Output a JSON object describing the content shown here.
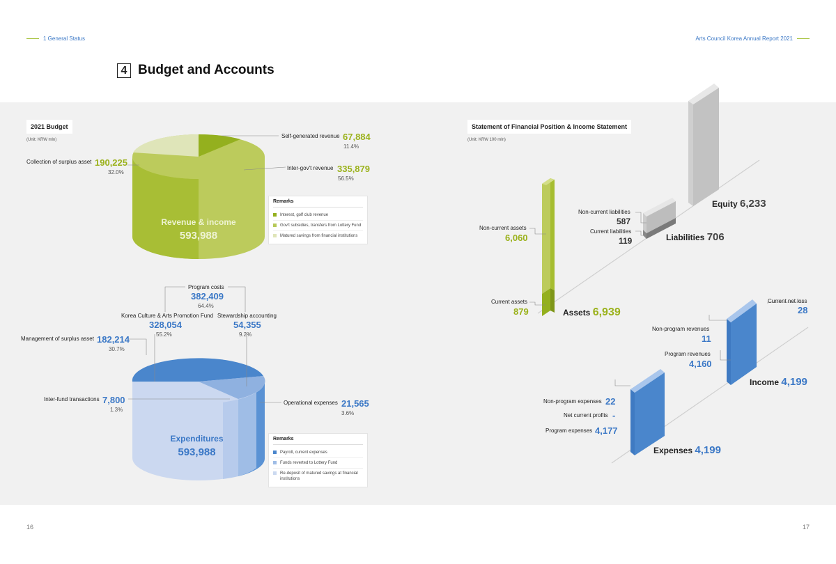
{
  "header": {
    "left": "1  General Status",
    "right": "Arts Council Korea Annual Report 2021"
  },
  "title": {
    "number": "4",
    "text": "Budget and Accounts"
  },
  "pages": {
    "left": "16",
    "right": "17"
  },
  "budget": {
    "section_title": "2021 Budget",
    "unit": "(Unit: KRW mln)",
    "revenue": {
      "center_label": "Revenue & income",
      "total": "593,988",
      "items": [
        {
          "label": "Self-generated revenue",
          "value": "67,884",
          "pct": "11.4%"
        },
        {
          "label": "Inter-gov't revenue",
          "value": "335,879",
          "pct": "56.5%"
        },
        {
          "label": "Collection of surplus asset",
          "value": "190,225",
          "pct": "32.0%"
        }
      ],
      "remarks_title": "Remarks",
      "remarks": [
        {
          "text": "Interest, golf club revenue",
          "color": "#94b01e"
        },
        {
          "text": "Gov't subsidies, transfers from Lottery Fund",
          "color": "#b6c958"
        },
        {
          "text": "Matured savings from financial institutions",
          "color": "#dfe5b9"
        }
      ]
    },
    "expenditures": {
      "center_label": "Expenditures",
      "total": "593,988",
      "items": [
        {
          "label": "Program costs",
          "value": "382,409",
          "pct": "64.4%"
        },
        {
          "label": "Korea Culture & Arts Promotion Fund",
          "value": "328,054",
          "pct": "55.2%"
        },
        {
          "label": "Stewardship accounting",
          "value": "54,355",
          "pct": "9.2%"
        },
        {
          "label": "Management of surplus asset",
          "value": "182,214",
          "pct": "30.7%"
        },
        {
          "label": "Inter-fund transactions",
          "value": "7,800",
          "pct": "1.3%"
        },
        {
          "label": "Operational expenses",
          "value": "21,565",
          "pct": "3.6%"
        }
      ],
      "remarks_title": "Remarks",
      "remarks": [
        {
          "text": "Payroll, current expenses",
          "color": "#4a86cc"
        },
        {
          "text": "Funds reverted to Lottery Fund",
          "color": "#9fbde6"
        },
        {
          "text": "Re-deposit of matured savings at financial institutions",
          "color": "#cbd9f0"
        }
      ]
    }
  },
  "financial": {
    "section_title": "Statement of Financial Position & Income Statement",
    "unit": "(Unit: KRW 100 mln)",
    "assets": {
      "label": "Assets",
      "total": "6,939",
      "non_current_label": "Non-current assets",
      "non_current": "6,060",
      "current_label": "Current assets",
      "current": "879"
    },
    "liabilities": {
      "label": "Liabilities",
      "total": "706",
      "non_current_label": "Non-current liabilities",
      "non_current": "587",
      "current_label": "Current liabilities",
      "current": "119"
    },
    "equity": {
      "label": "Equity",
      "total": "6,233"
    },
    "income": {
      "label": "Income",
      "total": "4,199",
      "current_net_loss_label": "Current net loss",
      "current_net_loss": "28",
      "non_program_label": "Non-program revenues",
      "non_program": "11",
      "program_label": "Program revenues",
      "program": "4,160"
    },
    "expenses": {
      "label": "Expenses",
      "total": "4,199",
      "non_program_label": "Non-program expenses",
      "non_program": "22",
      "net_profit_label": "Net current profits",
      "net_profit": "-",
      "program_label": "Program expenses",
      "program": "4,177"
    }
  }
}
